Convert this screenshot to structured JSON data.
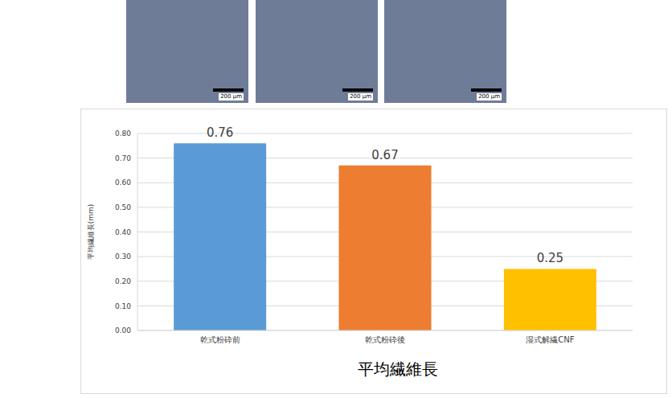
{
  "chart_data": {
    "type": "bar",
    "title": "平均繊維長",
    "y_label": "平均繊維長(mm)",
    "categories": [
      "乾式粉砕前",
      "乾式粉砕後",
      "湿式解繊CNF"
    ],
    "values": [
      0.76,
      0.67,
      0.25
    ],
    "colors": [
      "#5b9bd5",
      "#ed7d31",
      "#ffc000"
    ],
    "ylim": [
      0,
      0.8
    ],
    "yticks": [
      {
        "value": 0,
        "label": "0.00"
      },
      {
        "value": 0.1,
        "label": "0.10"
      },
      {
        "value": 0.2,
        "label": "0.20"
      },
      {
        "value": 0.3,
        "label": "0.30"
      },
      {
        "value": 0.4,
        "label": "0.40"
      },
      {
        "value": 0.5,
        "label": "0.50"
      },
      {
        "value": 0.6,
        "label": "0.60"
      },
      {
        "value": 0.7,
        "label": "0.70"
      },
      {
        "value": 0.8,
        "label": "0.80"
      }
    ],
    "grid": true,
    "data_labels": true
  },
  "image_scale_bars": [
    "200 μm",
    "200 μm",
    "200 μm"
  ]
}
